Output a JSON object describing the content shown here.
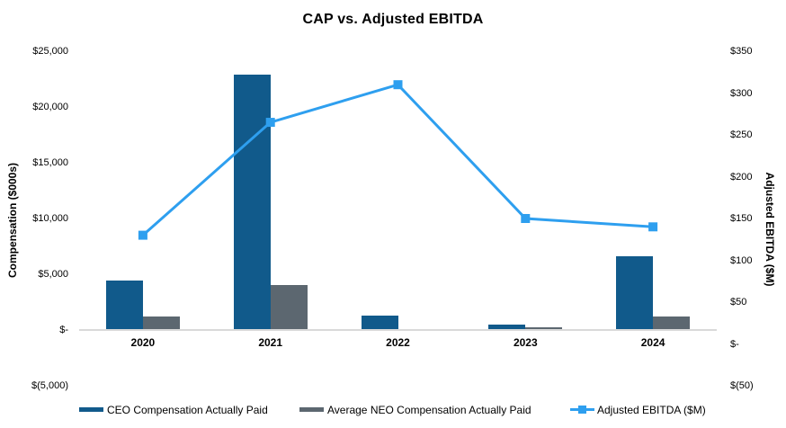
{
  "chart_data": {
    "type": "combo",
    "title": "CAP vs. Adjusted EBITDA",
    "categories": [
      "2020",
      "2021",
      "2022",
      "2023",
      "2024"
    ],
    "series": [
      {
        "name": "CEO Compensation Actually Paid",
        "type": "bar",
        "axis": "left",
        "color": "#115A8B",
        "values": [
          4400,
          22900,
          1300,
          450,
          6600
        ]
      },
      {
        "name": "Average NEO Compensation Actually Paid",
        "type": "bar",
        "axis": "left",
        "color": "#5C6770",
        "values": [
          1200,
          4050,
          0,
          250,
          1200
        ]
      },
      {
        "name": "Adjusted EBITDA ($M)",
        "type": "line",
        "axis": "right",
        "color": "#2E9FEF",
        "values": [
          130,
          265,
          310,
          150,
          140
        ]
      }
    ],
    "left_axis": {
      "label": "Compensation ($000s)",
      "min": -5000,
      "max": 25000,
      "ticks": [
        "$25,000",
        "$20,000",
        "$15,000",
        "$10,000",
        "$5,000",
        "$-",
        "$(5,000)"
      ]
    },
    "right_axis": {
      "label": "Adjusted EBITDA ($M)",
      "min": -50,
      "max": 350,
      "ticks": [
        "$350",
        "$300",
        "$250",
        "$200",
        "$150",
        "$100",
        "$50",
        "$-",
        "$(50)"
      ]
    },
    "legend_position": "bottom",
    "grid": false,
    "colors": {
      "axis_line": "#D9D9D9",
      "text": "#000000",
      "background": "#FFFFFF"
    }
  }
}
